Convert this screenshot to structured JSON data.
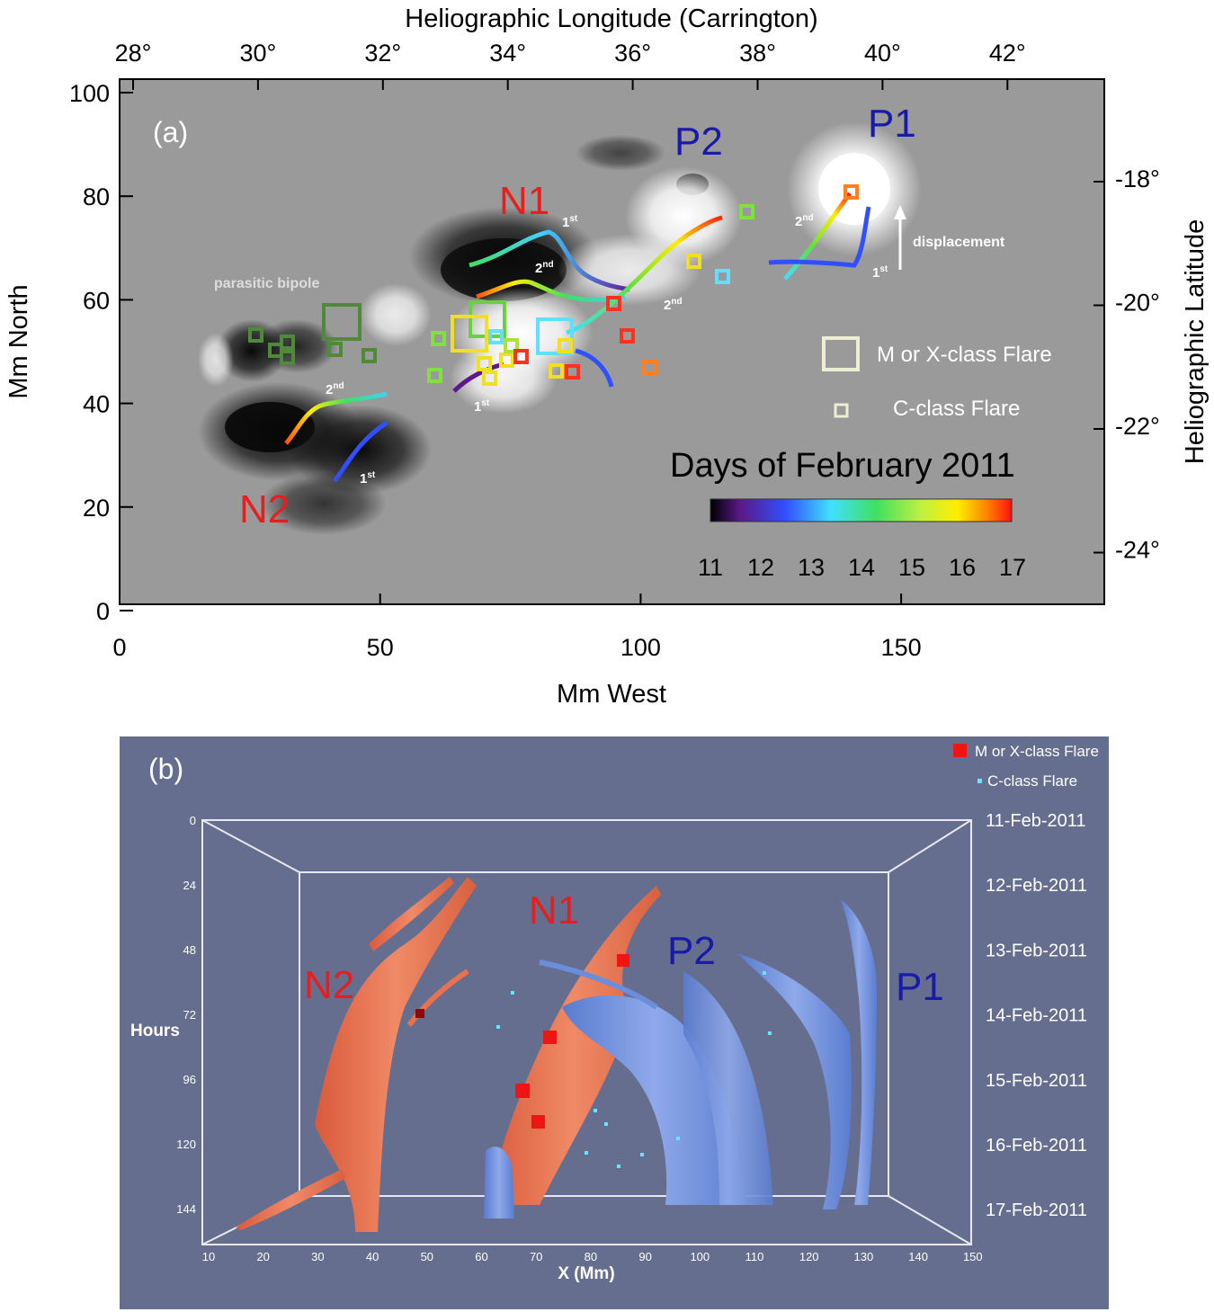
{
  "panel_a": {
    "label": "(a)",
    "top_axis_title": "Heliographic Longitude (Carrington)",
    "right_axis_title": "Heliographic Latitude",
    "left_axis_title": "Mm North",
    "bottom_axis_title": "Mm West",
    "top_ticks": [
      "28°",
      "30°",
      "32°",
      "34°",
      "36°",
      "38°",
      "40°",
      "42°"
    ],
    "right_ticks": [
      "-18°",
      "-20°",
      "-22°",
      "-24°"
    ],
    "left_ticks": [
      "100",
      "80",
      "60",
      "40",
      "20",
      "0"
    ],
    "bottom_ticks": [
      "0",
      "50",
      "100",
      "150"
    ],
    "labels": {
      "p1": "P1",
      "p2": "P2",
      "n1": "N1",
      "n2": "N2",
      "parasitic": "parasitic bipole",
      "displacement": "displacement",
      "first": "1",
      "second": "2",
      "st": "st",
      "nd": "nd"
    },
    "legend": {
      "m_flare": "M or X-class Flare",
      "c_flare": "C-class Flare"
    },
    "colorbar": {
      "title": "Days of February 2011",
      "ticks": [
        "11",
        "12",
        "13",
        "14",
        "15",
        "16",
        "17"
      ]
    }
  },
  "panel_b": {
    "label": "(b)",
    "legend": {
      "m_flare": "M or X-class Flare",
      "c_flare": "C-class Flare"
    },
    "y_title": "Hours",
    "x_title": "X (Mm)",
    "y_ticks": [
      "0",
      "24",
      "48",
      "72",
      "96",
      "120",
      "144"
    ],
    "x_ticks": [
      "10",
      "20",
      "30",
      "40",
      "50",
      "60",
      "70",
      "80",
      "90",
      "100",
      "110",
      "120",
      "130",
      "140",
      "150"
    ],
    "dates": [
      "11-Feb-2011",
      "12-Feb-2011",
      "13-Feb-2011",
      "14-Feb-2011",
      "15-Feb-2011",
      "16-Feb-2011",
      "17-Feb-2011"
    ],
    "labels": {
      "n1": "N1",
      "n2": "N2",
      "p1": "P1",
      "p2": "P2"
    }
  },
  "colors": {
    "positive": "#1a1aaa",
    "negative": "#e61e1e",
    "panel_b_bg": "#656e8e",
    "tube_red": "#e8714f",
    "tube_blue": "#6b8edb"
  }
}
